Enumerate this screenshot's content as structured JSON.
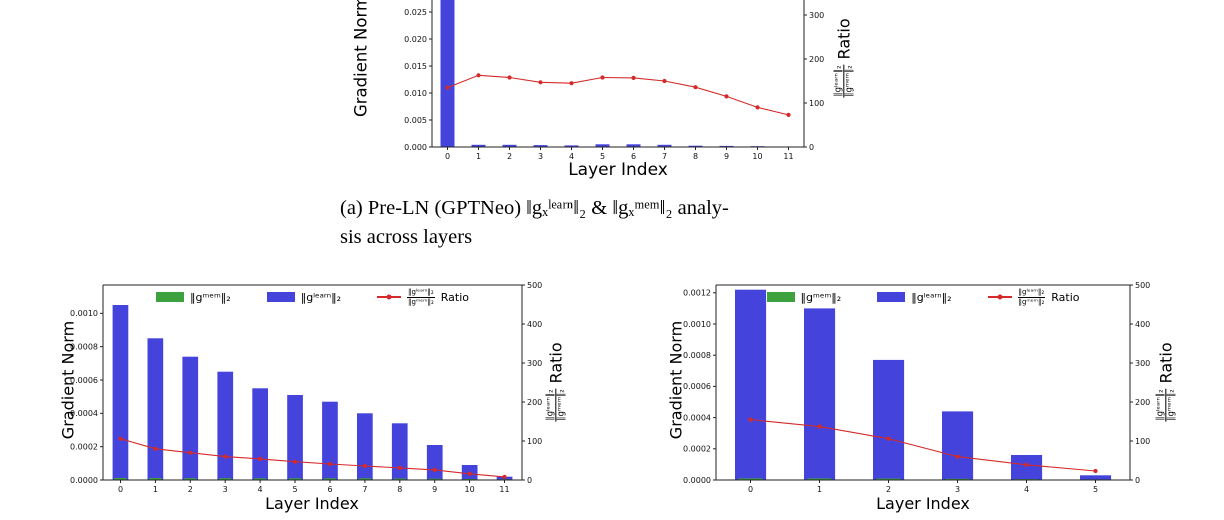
{
  "caption": {
    "line1": "(a) Pre-LN (GPTNeo) ‖gₓˡᵉᵃʳⁿ‖₂ & ‖gₓᵐᵉᵐ‖₂ analy-",
    "line2": "sis across layers"
  },
  "labels": {
    "xlabel": "Layer Index",
    "ylabel_left": "Gradient Norm",
    "ratio_word": "Ratio",
    "ratio_num": "‖gˡᵉᵃʳⁿ‖₂",
    "ratio_den": "‖gᵐᵉᵐ‖₂",
    "legend_mem": "‖gᵐᵉᵐ‖₂",
    "legend_learn": "‖gˡᵉᵃʳⁿ‖₂"
  },
  "colors": {
    "bar_learn": "#4444dd",
    "bar_mem": "#3da23d",
    "ratio_line": "#d42a2a",
    "axis": "#222222"
  },
  "chart_data": [
    {
      "id": "top",
      "type": "bar",
      "title": "",
      "xlabel": "Layer Index",
      "ylabel": "Gradient Norm",
      "ylabel_right": "‖gˡᵉᵃʳⁿ‖₂/‖gᵐᵉᵐ‖₂ Ratio",
      "categories": [
        "0",
        "1",
        "2",
        "3",
        "4",
        "5",
        "6",
        "7",
        "8",
        "9",
        "10",
        "11"
      ],
      "ylim_left": [
        0,
        0.03
      ],
      "ylim_right": [
        0,
        400
      ],
      "left_tick_values": [
        0,
        0.005,
        0.01,
        0.015,
        0.02,
        0.025
      ],
      "left_tick_labels": [
        "0.000",
        "0.005",
        "0.010",
        "0.015",
        "0.020",
        "0.025"
      ],
      "right_tick_values": [
        0,
        100,
        200,
        300
      ],
      "right_tick_labels": [
        "0",
        "100",
        "200",
        "300"
      ],
      "series": [
        {
          "name": "‖gᵐᵉᵐ‖₂",
          "type": "bar",
          "axis": "left",
          "values": [
            6e-05,
            5e-05,
            5e-05,
            4e-05,
            4e-05,
            4e-05,
            4e-05,
            3e-05,
            3e-05,
            3e-05,
            2e-05,
            2e-05
          ]
        },
        {
          "name": "‖gˡᵉᵃʳⁿ‖₂",
          "type": "bar",
          "axis": "left",
          "values": [
            0.0315,
            0.0004,
            0.0004,
            0.00035,
            0.0003,
            0.0005,
            0.0005,
            0.0004,
            0.00025,
            0.0002,
            0.00015,
            0.0001
          ]
        },
        {
          "name": "‖gˡᵉᵃʳⁿ‖₂/‖gᵐᵉᵐ‖₂ Ratio",
          "type": "line",
          "axis": "right",
          "values": [
            135,
            163,
            158,
            147,
            145,
            158,
            157,
            150,
            136,
            115,
            90,
            73
          ]
        }
      ]
    },
    {
      "id": "bl",
      "type": "bar",
      "title": "",
      "xlabel": "Layer Index",
      "ylabel": "Gradient Norm",
      "ylabel_right": "‖gˡᵉᵃʳⁿ‖₂/‖gᵐᵉᵐ‖₂ Ratio",
      "categories": [
        "0",
        "1",
        "2",
        "3",
        "4",
        "5",
        "6",
        "7",
        "8",
        "9",
        "10",
        "11"
      ],
      "ylim_left": [
        0,
        0.00117
      ],
      "ylim_right": [
        0,
        500
      ],
      "left_tick_values": [
        0,
        0.0002,
        0.0004,
        0.0006,
        0.0008,
        0.001
      ],
      "left_tick_labels": [
        "0.0000",
        "0.0002",
        "0.0004",
        "0.0006",
        "0.0008",
        "0.0010"
      ],
      "right_tick_values": [
        0,
        100,
        200,
        300,
        400,
        500
      ],
      "right_tick_labels": [
        "0",
        "100",
        "200",
        "300",
        "400",
        "500"
      ],
      "series": [
        {
          "name": "‖gᵐᵉᵐ‖₂",
          "type": "bar",
          "axis": "left",
          "values": [
            1.2e-05,
            1.2e-05,
            1.1e-05,
            1.1e-05,
            1e-05,
            1e-05,
            1e-05,
            1e-05,
            9e-06,
            8e-06,
            6e-06,
            4e-06
          ]
        },
        {
          "name": "‖gˡᵉᵃʳⁿ‖₂",
          "type": "bar",
          "axis": "left",
          "values": [
            0.00105,
            0.00085,
            0.00074,
            0.00065,
            0.00055,
            0.00051,
            0.00047,
            0.0004,
            0.00034,
            0.00021,
            9e-05,
            2e-05
          ]
        },
        {
          "name": "‖gˡᵉᵃʳⁿ‖₂/‖gᵐᵉᵐ‖₂ Ratio",
          "type": "line",
          "axis": "right",
          "values": [
            106,
            80,
            70,
            60,
            54,
            47,
            41,
            36,
            31,
            26,
            16,
            8
          ]
        }
      ]
    },
    {
      "id": "br",
      "type": "bar",
      "title": "",
      "xlabel": "Layer Index",
      "ylabel": "Gradient Norm",
      "ylabel_right": "‖gˡᵉᵃʳⁿ‖₂/‖gᵐᵉᵐ‖₂ Ratio",
      "categories": [
        "0",
        "1",
        "2",
        "3",
        "4",
        "5"
      ],
      "ylim_left": [
        0,
        0.00125
      ],
      "ylim_right": [
        0,
        500
      ],
      "left_tick_values": [
        0,
        0.0002,
        0.0004,
        0.0006,
        0.0008,
        0.001,
        0.0012
      ],
      "left_tick_labels": [
        "0.0000",
        "0.0002",
        "0.0004",
        "0.0006",
        "0.0008",
        "0.0010",
        "0.0012"
      ],
      "right_tick_values": [
        0,
        100,
        200,
        300,
        400,
        500
      ],
      "right_tick_labels": [
        "0",
        "100",
        "200",
        "300",
        "400",
        "500"
      ],
      "series": [
        {
          "name": "‖gᵐᵉᵐ‖₂",
          "type": "bar",
          "axis": "left",
          "values": [
            1e-05,
            1e-05,
            9e-06,
            8e-06,
            6e-06,
            4e-06
          ]
        },
        {
          "name": "‖gˡᵉᵃʳⁿ‖₂",
          "type": "bar",
          "axis": "left",
          "values": [
            0.00122,
            0.0011,
            0.00077,
            0.00044,
            0.00016,
            3e-05
          ]
        },
        {
          "name": "‖gˡᵉᵃʳⁿ‖₂/‖gᵐᵉᵐ‖₂ Ratio",
          "type": "line",
          "axis": "right",
          "values": [
            155,
            137,
            106,
            60,
            39,
            23
          ]
        }
      ]
    }
  ]
}
